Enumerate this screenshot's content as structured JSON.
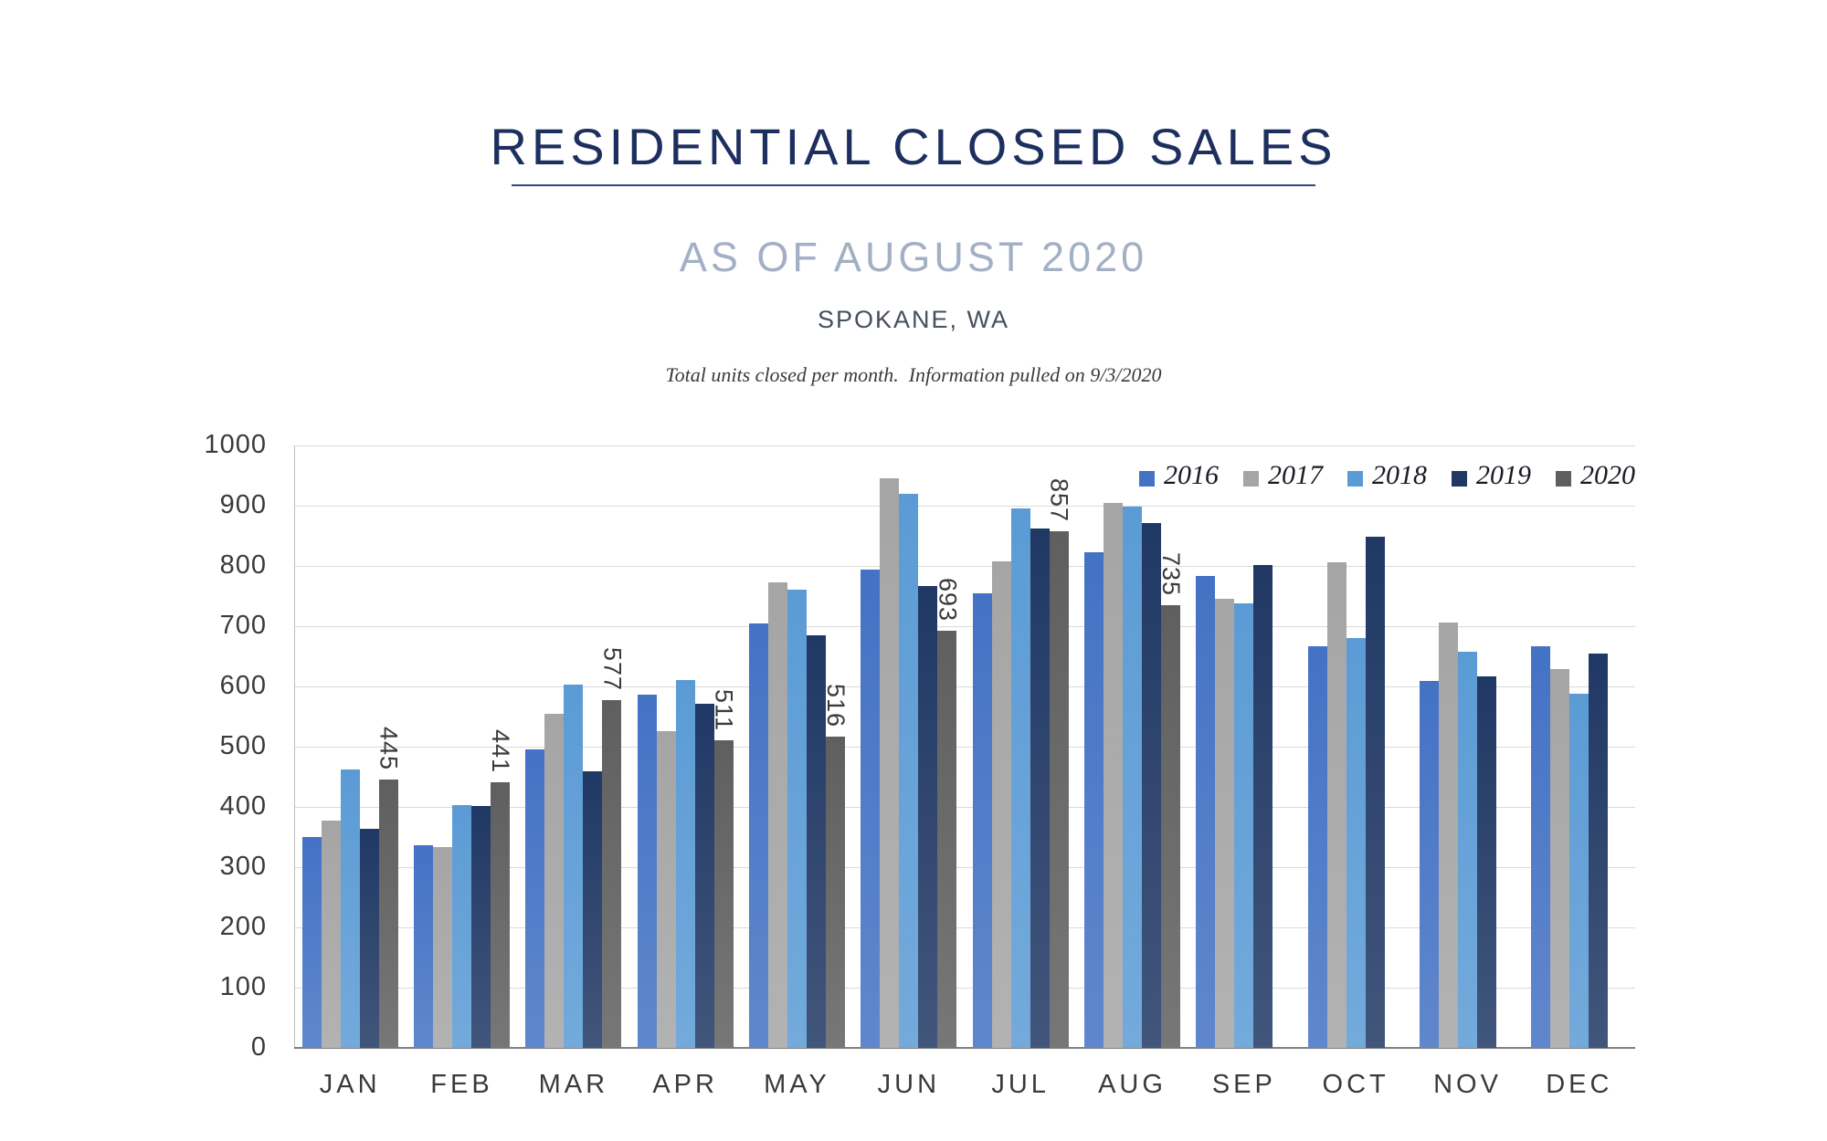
{
  "header": {
    "title": "RESIDENTIAL CLOSED SALES",
    "subtitle": "AS OF AUGUST 2020",
    "location": "SPOKANE, WA",
    "note": "Total units closed per month.  Information pulled on 9/3/2020"
  },
  "colors": {
    "title_navy": "#1C2F5E",
    "subtitle_slate": "#A2AFC5",
    "gridline": "#DADADA",
    "axis_text": "#3A3A3A"
  },
  "chart_data": {
    "type": "bar",
    "title": "RESIDENTIAL CLOSED SALES",
    "subtitle": "AS OF AUGUST 2020",
    "location": "SPOKANE, WA",
    "note": "Total units closed per month.  Information pulled on 9/3/2020",
    "categories": [
      "JAN",
      "FEB",
      "MAR",
      "APR",
      "MAY",
      "JUN",
      "JUL",
      "AUG",
      "SEP",
      "OCT",
      "NOV",
      "DEC"
    ],
    "series": [
      {
        "name": "2016",
        "color": "#4472C4",
        "values": [
          350,
          337,
          495,
          586,
          704,
          794,
          754,
          823,
          783,
          666,
          609,
          666
        ]
      },
      {
        "name": "2017",
        "color": "#A5A5A5",
        "values": [
          377,
          333,
          555,
          526,
          773,
          945,
          808,
          905,
          745,
          806,
          706,
          629
        ]
      },
      {
        "name": "2018",
        "color": "#5B9BD5",
        "values": [
          462,
          403,
          603,
          611,
          761,
          920,
          896,
          899,
          738,
          681,
          657,
          588
        ]
      },
      {
        "name": "2019",
        "color": "#203864",
        "values": [
          363,
          401,
          459,
          571,
          685,
          766,
          862,
          871,
          801,
          849,
          617,
          654
        ]
      },
      {
        "name": "2020",
        "color": "#5F5F5F",
        "values": [
          445,
          441,
          577,
          511,
          516,
          693,
          857,
          735,
          null,
          null,
          null,
          null
        ],
        "data_labels": true
      }
    ],
    "ylim": [
      0,
      1000
    ],
    "ytick_step": 100,
    "grid": "horizontal",
    "legend_position": "top-right",
    "legend_labels": [
      "2016",
      "2017",
      "2018",
      "2019",
      "2020"
    ]
  }
}
